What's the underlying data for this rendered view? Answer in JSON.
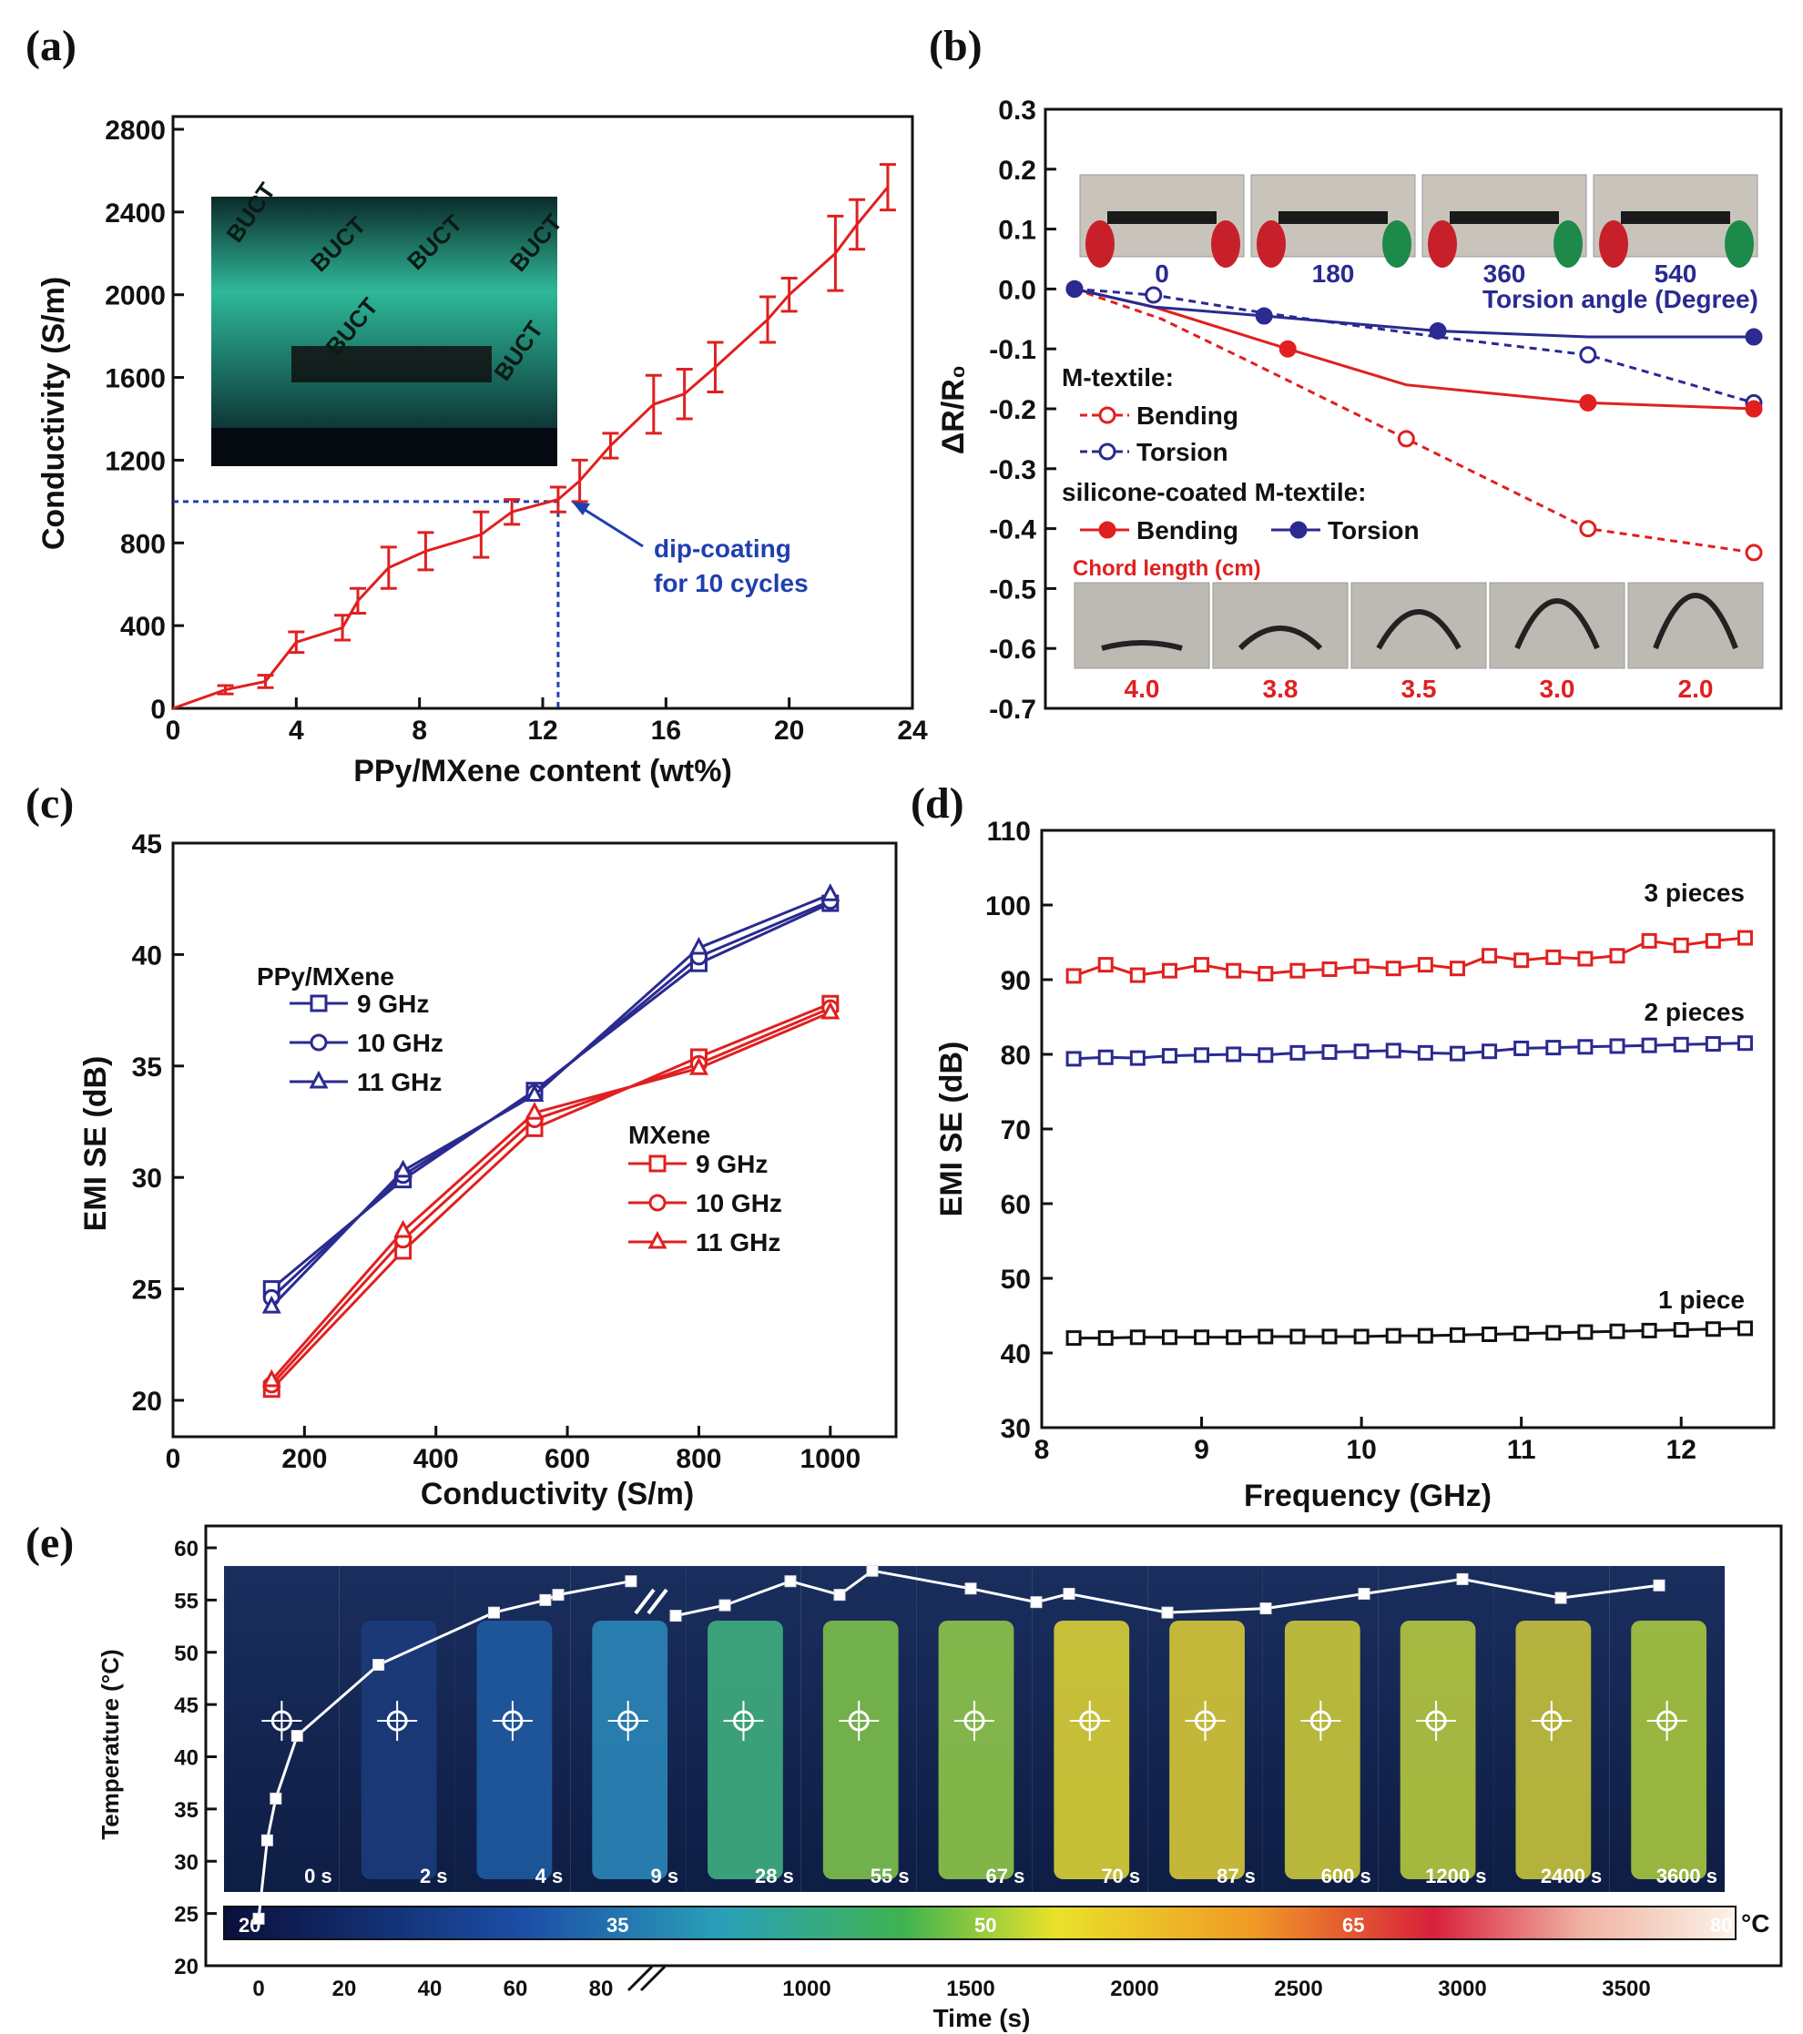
{
  "colors": {
    "red": "#e02020",
    "blue": "#2a2a90",
    "black": "#111111",
    "dashblue": "#1f3fb0",
    "white": "#ffffff"
  },
  "chart_data": [
    {
      "panel": "(a)",
      "type": "line",
      "xlabel": "PPy/MXene content (wt%)",
      "ylabel": "Conductivity (S/m)",
      "xlim": [
        0,
        24
      ],
      "ylim": [
        0,
        2800
      ],
      "xticks": [
        "0",
        "4",
        "8",
        "12",
        "16",
        "20",
        "24"
      ],
      "yticks": [
        "0",
        "400",
        "800",
        "1200",
        "1600",
        "2000",
        "2400",
        "2800"
      ],
      "series": [
        {
          "name": "conductivity",
          "x": [
            0,
            1.7,
            3,
            4,
            5.5,
            6,
            7,
            8.2,
            10,
            11,
            12.5,
            13.2,
            14.2,
            15.6,
            16.6,
            17.6,
            19.3,
            20,
            21.5,
            22.2,
            23.2
          ],
          "y": [
            0,
            90,
            130,
            320,
            390,
            520,
            680,
            760,
            840,
            950,
            1010,
            1100,
            1270,
            1470,
            1520,
            1650,
            1880,
            2000,
            2200,
            2340,
            2520
          ],
          "err": [
            20,
            20,
            30,
            50,
            60,
            60,
            100,
            90,
            110,
            60,
            60,
            100,
            60,
            140,
            120,
            120,
            110,
            80,
            180,
            120,
            110
          ]
        }
      ],
      "annotation": [
        "dip-coating",
        "for 10 cycles"
      ],
      "marker": {
        "x": 12.5,
        "y": 1000
      },
      "inset_labels": [
        "BUCT",
        "BUCT",
        "BUCT",
        "BUCT",
        "BUCT",
        "BUCT"
      ]
    },
    {
      "panel": "(b)",
      "type": "line",
      "ylabel": "ΔR/R₀",
      "ylim": [
        -0.7,
        0.3
      ],
      "yticks": [
        "0.3",
        "0.2",
        "0.1",
        "0.0",
        "-0.1",
        "-0.2",
        "-0.3",
        "-0.4",
        "-0.5",
        "-0.6",
        "-0.7"
      ],
      "x_steps": [
        0,
        1,
        2,
        3,
        4
      ],
      "torsion_ticks": [
        "0",
        "180",
        "360",
        "540"
      ],
      "torsion_label": "Torsion angle (Degree)",
      "chord_ticks": [
        "4.0",
        "3.8",
        "3.5",
        "3.0",
        "2.0"
      ],
      "chord_label": "Chord length (cm)",
      "legend_group1": "M-textile:",
      "legend_group2": "silicone-coated M-textile:",
      "series": [
        {
          "name": "Bending",
          "group": "M-textile",
          "x": [
            0,
            0.55,
            1.1,
            2.1,
            3.25,
            4.3
          ],
          "y": [
            0,
            -0.05,
            -0.12,
            -0.25,
            -0.4,
            -0.44
          ]
        },
        {
          "name": "Torsion",
          "group": "M-textile",
          "x": [
            0,
            0.5,
            1.2,
            2.3,
            3.25,
            4.3
          ],
          "y": [
            0,
            -0.01,
            -0.04,
            -0.08,
            -0.11,
            -0.19
          ]
        },
        {
          "name": "Bending",
          "group": "silicone-coated M-textile",
          "x": [
            0,
            0.5,
            1.35,
            2.1,
            3.25,
            4.3
          ],
          "y": [
            0,
            -0.03,
            -0.1,
            -0.16,
            -0.19,
            -0.2
          ]
        },
        {
          "name": "Torsion",
          "group": "silicone-coated M-textile",
          "x": [
            0,
            0.5,
            1.2,
            2.3,
            3.25,
            4.3
          ],
          "y": [
            0,
            -0.03,
            -0.045,
            -0.07,
            -0.08,
            -0.08
          ]
        }
      ]
    },
    {
      "panel": "(c)",
      "type": "line",
      "xlabel": "Conductivity (S/m)",
      "ylabel": "EMI SE (dB)",
      "xlim": [
        0,
        1100
      ],
      "ylim": [
        20,
        45
      ],
      "xticks": [
        "0",
        "200",
        "400",
        "600",
        "800",
        "1000"
      ],
      "yticks": [
        "20",
        "25",
        "30",
        "35",
        "40",
        "45"
      ],
      "x": [
        150,
        350,
        550,
        800,
        1000
      ],
      "legend_title_1": "PPy/MXene",
      "legend_title_2": "MXene",
      "series": [
        {
          "name": "9 GHz",
          "group": "PPy/MXene",
          "marker": "square",
          "values": [
            25.0,
            29.9,
            33.9,
            39.6,
            42.3
          ]
        },
        {
          "name": "10 GHz",
          "group": "PPy/MXene",
          "marker": "circle",
          "values": [
            24.6,
            30.1,
            33.8,
            39.9,
            42.4
          ]
        },
        {
          "name": "11 GHz",
          "group": "PPy/MXene",
          "marker": "triangle",
          "values": [
            24.2,
            30.3,
            33.7,
            40.3,
            42.7
          ]
        },
        {
          "name": "9 GHz",
          "group": "MXene",
          "marker": "square",
          "values": [
            20.5,
            26.7,
            32.2,
            35.4,
            37.8
          ]
        },
        {
          "name": "10 GHz",
          "group": "MXene",
          "marker": "circle",
          "values": [
            20.7,
            27.2,
            32.6,
            35.1,
            37.6
          ]
        },
        {
          "name": "11 GHz",
          "group": "MXene",
          "marker": "triangle",
          "values": [
            20.9,
            27.6,
            32.9,
            34.9,
            37.4
          ]
        }
      ]
    },
    {
      "panel": "(d)",
      "type": "line",
      "xlabel": "Frequency (GHz)",
      "ylabel": "EMI SE (dB)",
      "xlim": [
        8,
        12.5
      ],
      "ylim": [
        30,
        110
      ],
      "xticks": [
        "8",
        "9",
        "10",
        "11",
        "12"
      ],
      "yticks": [
        "30",
        "40",
        "50",
        "60",
        "70",
        "80",
        "90",
        "100",
        "110"
      ],
      "x": [
        8.2,
        8.4,
        8.6,
        8.8,
        9.0,
        9.2,
        9.4,
        9.6,
        9.8,
        10.0,
        10.2,
        10.4,
        10.6,
        10.8,
        11.0,
        11.2,
        11.4,
        11.6,
        11.8,
        12.0,
        12.2,
        12.4
      ],
      "series": [
        {
          "name": "3 pieces",
          "color": "red",
          "values": [
            90.5,
            92.0,
            90.6,
            91.2,
            92.0,
            91.2,
            90.8,
            91.2,
            91.4,
            91.8,
            91.5,
            92.0,
            91.5,
            93.2,
            92.6,
            93.0,
            92.8,
            93.2,
            95.2,
            94.6,
            95.2,
            95.6
          ]
        },
        {
          "name": "2 pieces",
          "color": "blue",
          "values": [
            79.4,
            79.6,
            79.5,
            79.8,
            79.9,
            80.0,
            79.9,
            80.2,
            80.3,
            80.4,
            80.5,
            80.2,
            80.1,
            80.4,
            80.8,
            80.9,
            81.0,
            81.1,
            81.2,
            81.3,
            81.4,
            81.5
          ]
        },
        {
          "name": "1 piece",
          "color": "black",
          "values": [
            42.0,
            42.0,
            42.1,
            42.1,
            42.1,
            42.1,
            42.2,
            42.2,
            42.2,
            42.2,
            42.3,
            42.3,
            42.4,
            42.5,
            42.6,
            42.7,
            42.8,
            42.9,
            43.0,
            43.1,
            43.2,
            43.3
          ]
        }
      ]
    },
    {
      "panel": "(e)",
      "type": "line",
      "xlabel": "Time (s)",
      "ylabel": "Temperature (°C)",
      "ylim": [
        20,
        60
      ],
      "yticks": [
        "20",
        "25",
        "30",
        "35",
        "40",
        "45",
        "50",
        "55",
        "60"
      ],
      "xticks_left": [
        "0",
        "20",
        "40",
        "60",
        "80"
      ],
      "xticks_right": [
        "1000",
        "1500",
        "2000",
        "2500",
        "3000",
        "3500"
      ],
      "frame_labels": [
        "0 s",
        "2 s",
        "4 s",
        "9 s",
        "28 s",
        "55 s",
        "67 s",
        "70 s",
        "87 s",
        "600 s",
        "1200 s",
        "2400 s",
        "3600 s"
      ],
      "colorbar_ticks": [
        "20",
        "35",
        "50",
        "65",
        "80"
      ],
      "colorbar_unit": "°C",
      "series_left": {
        "x": [
          0,
          2,
          4,
          9,
          28,
          55,
          67,
          70,
          87
        ],
        "y": [
          24.5,
          32,
          36,
          42,
          48.8,
          53.8,
          55,
          55.5,
          56.8
        ]
      },
      "series_right": {
        "x": [
          600,
          750,
          950,
          1100,
          1200,
          1500,
          1700,
          1800,
          2100,
          2400,
          2700,
          3000,
          3300,
          3600
        ],
        "y": [
          53.5,
          54.5,
          56.8,
          55.5,
          57.8,
          56.1,
          54.8,
          55.6,
          53.8,
          54.2,
          55.6,
          57.0,
          55.2,
          56.4
        ]
      }
    }
  ]
}
